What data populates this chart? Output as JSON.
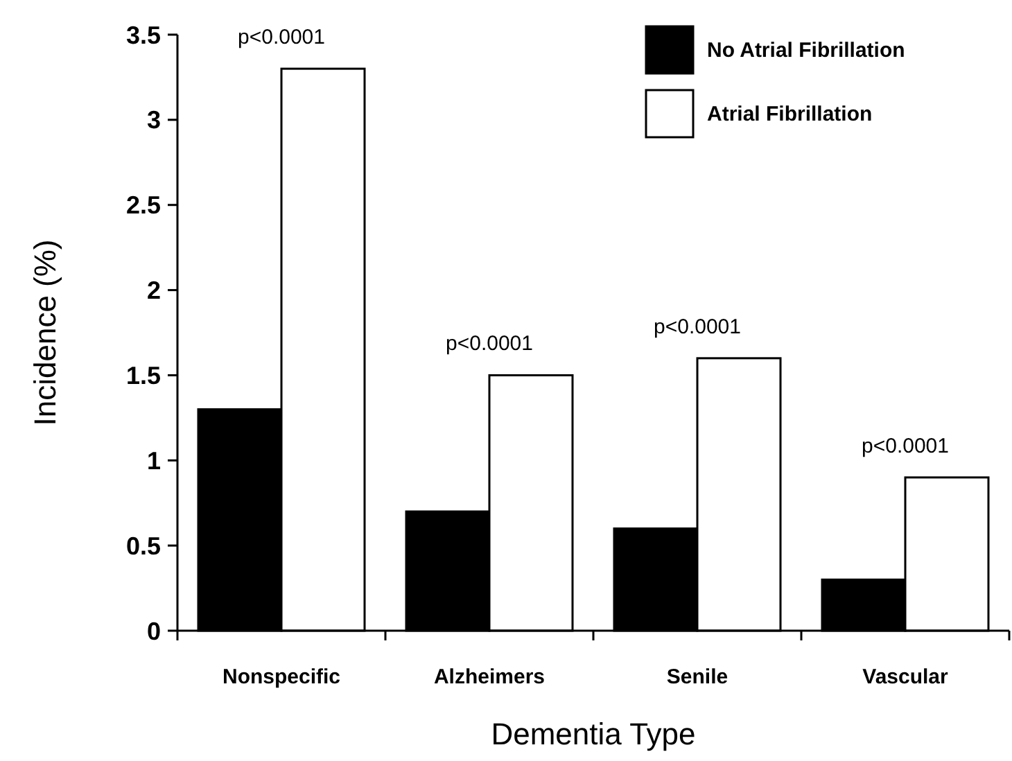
{
  "chart_data": {
    "type": "bar",
    "xlabel": "Dementia Type",
    "ylabel": "Incidence (%)",
    "categories": [
      "Nonspecific",
      "Alzheimers",
      "Senile",
      "Vascular"
    ],
    "series": [
      {
        "name": "No Atrial Fibrillation",
        "color": "#000000",
        "values": [
          1.3,
          0.7,
          0.6,
          0.3
        ]
      },
      {
        "name": "Atrial Fibrillation",
        "color": "#ffffff",
        "values": [
          3.3,
          1.5,
          1.6,
          0.9
        ]
      }
    ],
    "ylim": [
      0,
      3.5
    ],
    "yticks": [
      0,
      0.5,
      1,
      1.5,
      2,
      2.5,
      3,
      3.5
    ],
    "grid": false,
    "legend": "top right",
    "annotations": [
      {
        "text": "p<0.0001",
        "x": "Nonspecific",
        "y": 3.3
      },
      {
        "text": "p<0.0001",
        "x": "Alzheimers",
        "y": 1.5
      },
      {
        "text": "p<0.0001",
        "x": "Senile",
        "y": 1.6
      },
      {
        "text": "p<0.0001",
        "x": "Vascular",
        "y": 0.9
      }
    ]
  }
}
